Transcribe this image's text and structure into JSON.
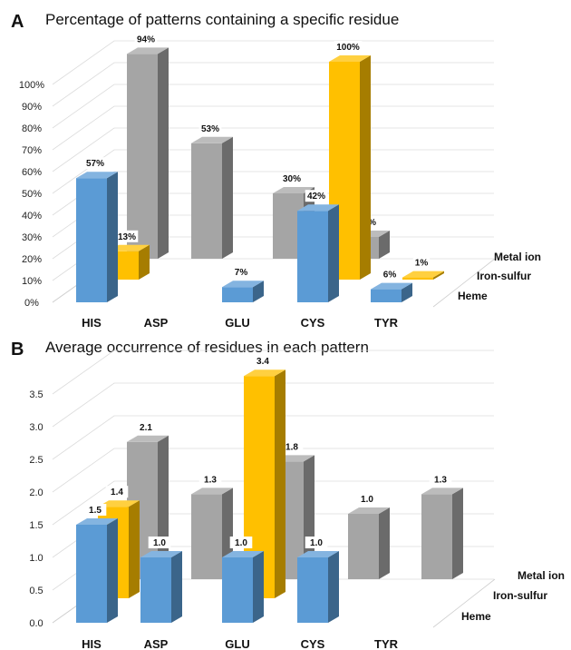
{
  "chart_data": [
    {
      "type": "bar",
      "panel": "A",
      "title": "Percentage of patterns containing a specific residue",
      "categories": [
        "HIS",
        "ASP",
        "GLU",
        "CYS",
        "TYR"
      ],
      "y_ticks": [
        "0%",
        "10%",
        "20%",
        "30%",
        "40%",
        "50%",
        "60%",
        "70%",
        "80%",
        "90%",
        "100%"
      ],
      "ylim": [
        0,
        100
      ],
      "series": [
        {
          "name": "Heme",
          "values": [
            57,
            null,
            7,
            42,
            6
          ],
          "labels": [
            "57%",
            "",
            "7%",
            "42%",
            "6%"
          ]
        },
        {
          "name": "Iron-sulfur",
          "values": [
            13,
            null,
            null,
            100,
            1
          ],
          "labels": [
            "13%",
            "",
            "",
            "100%",
            "1%"
          ]
        },
        {
          "name": "Metal ion",
          "values": [
            94,
            53,
            30,
            10,
            null
          ],
          "labels": [
            "94%",
            "53%",
            "30%",
            "10%",
            ""
          ]
        }
      ]
    },
    {
      "type": "bar",
      "panel": "B",
      "title": "Average occurrence of residues in each pattern",
      "categories": [
        "HIS",
        "ASP",
        "GLU",
        "CYS",
        "TYR"
      ],
      "y_ticks": [
        "0.0",
        "0.5",
        "1.0",
        "1.5",
        "2.0",
        "2.5",
        "3.0",
        "3.5"
      ],
      "ylim": [
        0,
        3.5
      ],
      "series": [
        {
          "name": "Heme",
          "values": [
            1.5,
            1.0,
            1.0,
            1.0,
            null
          ],
          "labels": [
            "1.5",
            "1.0",
            "1.0",
            "1.0",
            ""
          ]
        },
        {
          "name": "Iron-sulfur",
          "values": [
            1.4,
            null,
            3.4,
            null,
            null
          ],
          "labels": [
            "1.4",
            "",
            "3.4",
            "",
            ""
          ]
        },
        {
          "name": "Metal ion",
          "values": [
            2.1,
            1.3,
            1.8,
            1.0,
            1.3
          ],
          "labels": [
            "2.1",
            "1.3",
            "1.8",
            "1.0",
            "1.3"
          ]
        }
      ]
    }
  ],
  "colors": {
    "heme": "#5b9bd5",
    "iron_sulfur": "#ffc000",
    "metal_ion": "#a5a5a5"
  }
}
